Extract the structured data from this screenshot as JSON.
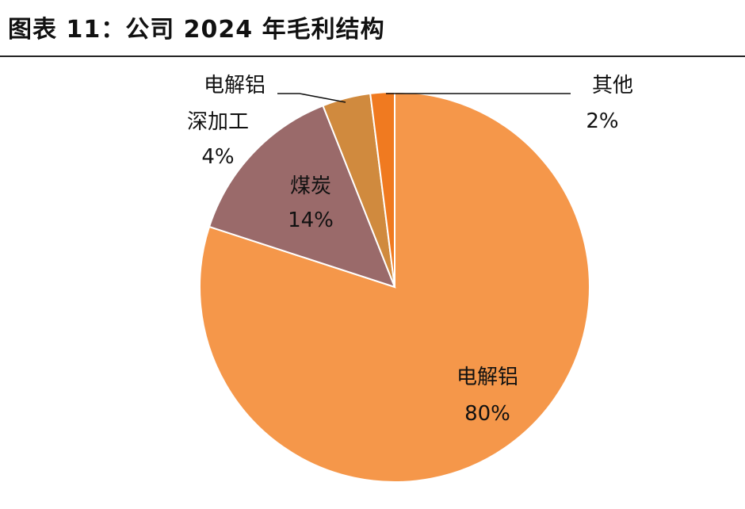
{
  "header": {
    "title": "图表 11：公司 2024 年毛利结构"
  },
  "chart_data": {
    "type": "pie",
    "title": "图表 11：公司 2024 年毛利结构",
    "slices": [
      {
        "name": "电解铝",
        "value": 80,
        "label": "80%",
        "color": "#F5974A"
      },
      {
        "name": "煤炭",
        "value": 14,
        "label": "14%",
        "color": "#9A6A6A"
      },
      {
        "name": "深加工",
        "value": 4,
        "label": "4%",
        "color": "#D08A3E"
      },
      {
        "name": "其他",
        "value": 2,
        "label": "2%",
        "color": "#F07A20"
      }
    ],
    "outside_labels": {
      "deep_processing_line1": "电解铝",
      "deep_processing_line2": "深加工"
    }
  }
}
